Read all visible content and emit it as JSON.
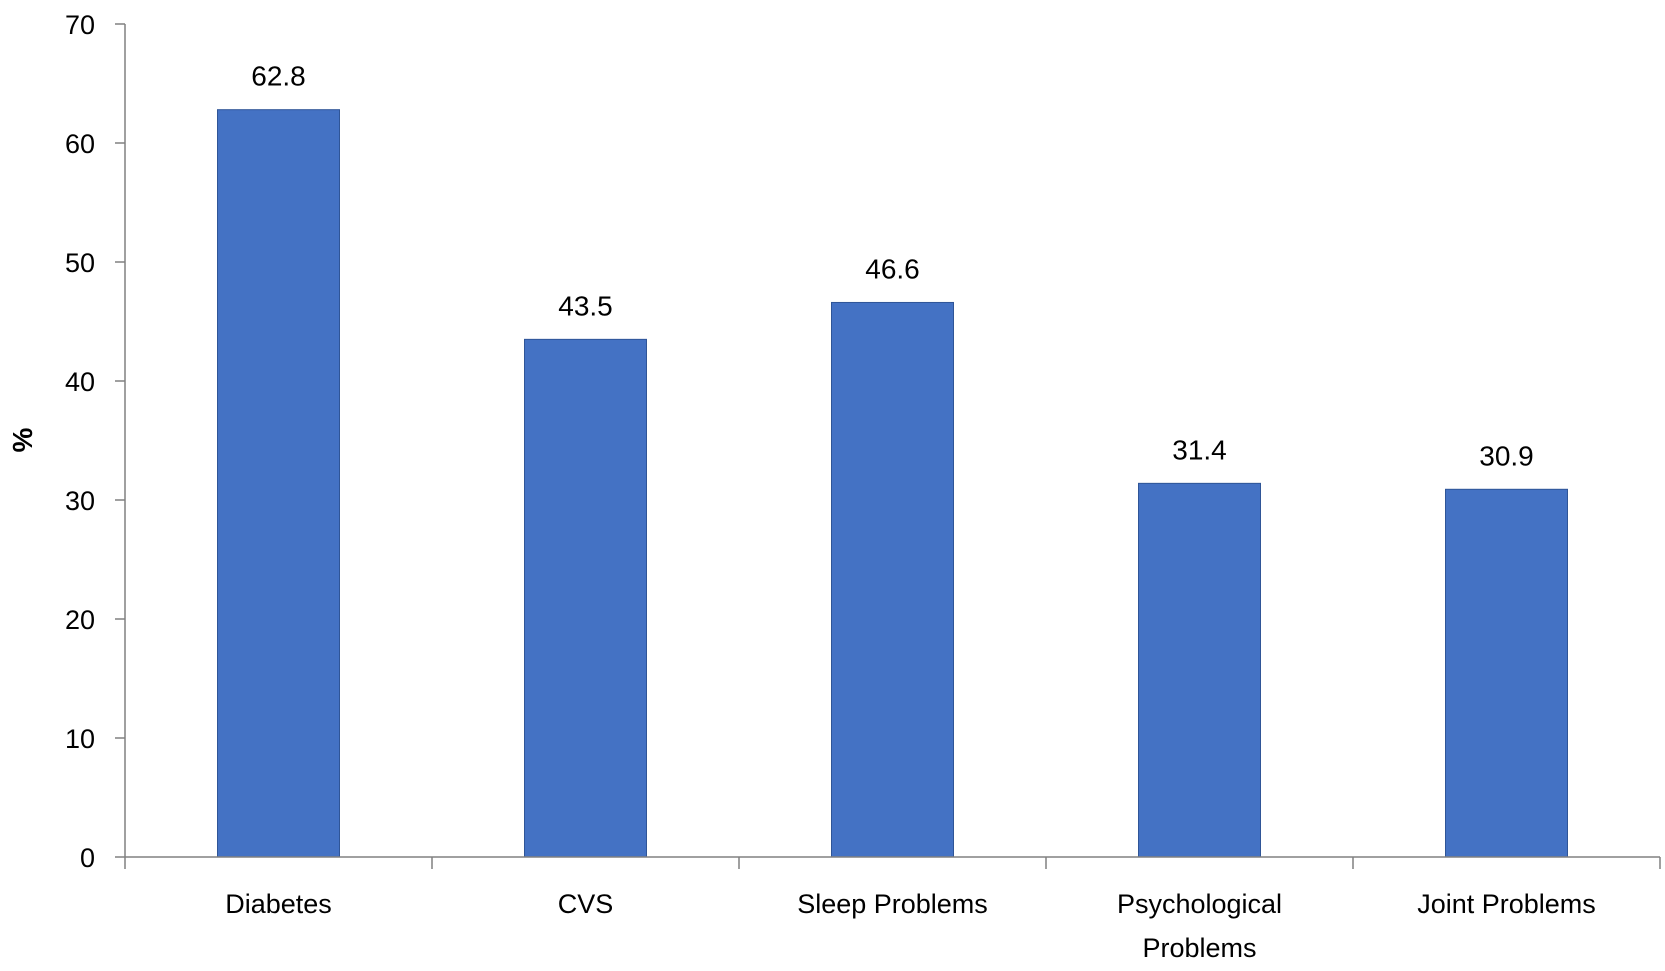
{
  "chart_data": {
    "type": "bar",
    "title": "",
    "xlabel": "",
    "ylabel": "%",
    "categories": [
      [
        "Diabetes"
      ],
      [
        "CVS"
      ],
      [
        "Sleep Problems"
      ],
      [
        "Psychological",
        "Problems"
      ],
      [
        "Joint Problems"
      ]
    ],
    "values": [
      62.8,
      43.5,
      46.6,
      31.4,
      30.9
    ],
    "data_labels": [
      "62.8",
      "43.5",
      "46.6",
      "31.4",
      "30.9"
    ],
    "ylim": [
      0,
      70
    ],
    "yticks": [
      0,
      10,
      20,
      30,
      40,
      50,
      60,
      70
    ],
    "grid": false,
    "legend": "none",
    "bar_color": "#4472C4",
    "bar_edge_color": "#2F5597",
    "axis_color": "#808080"
  }
}
